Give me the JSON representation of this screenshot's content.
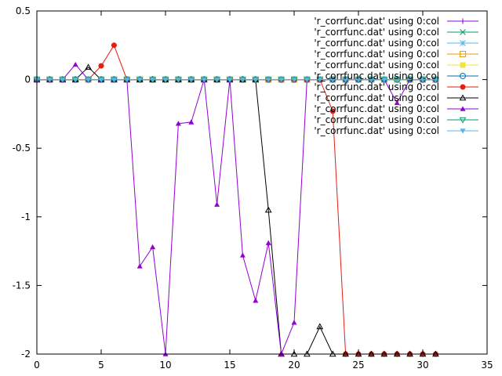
{
  "chart_data": {
    "type": "line",
    "title": "",
    "xlabel": "",
    "ylabel": "",
    "xlim": [
      0,
      35
    ],
    "ylim": [
      -2,
      0.5
    ],
    "xticks": [
      "0",
      "5",
      "10",
      "15",
      "20",
      "25",
      "30",
      "35"
    ],
    "yticks": [
      "0.5",
      "0",
      "-0.5",
      "-1",
      "-1.5",
      "-2"
    ],
    "legend_position": "top-right",
    "grid": false,
    "series": [
      {
        "name": "'r_corrfunc.dat' using 0:col",
        "color": "#9400d3",
        "marker": "plus",
        "x": [
          0,
          1,
          2,
          3,
          4,
          5,
          6,
          7,
          8,
          9,
          10,
          11,
          12,
          13,
          14,
          15,
          16,
          17,
          18,
          19,
          20,
          21,
          22,
          23,
          24,
          25,
          26,
          27,
          28,
          29,
          30,
          31
        ],
        "y": [
          0,
          0,
          0,
          0,
          0,
          0,
          0,
          0,
          0,
          0,
          0,
          0,
          0,
          0,
          0,
          0,
          0,
          0,
          0,
          0,
          0,
          0,
          0,
          0,
          0,
          0,
          0,
          0,
          0,
          0,
          0,
          0
        ]
      },
      {
        "name": "'r_corrfunc.dat' using 0:col",
        "color": "#009e73",
        "marker": "x",
        "x": [
          0,
          1,
          2,
          3,
          4,
          5,
          6,
          7,
          8,
          9,
          10,
          11,
          12,
          13,
          14,
          15,
          16,
          17,
          18,
          19,
          20,
          21,
          22,
          23,
          24,
          25,
          26,
          27,
          28,
          29,
          30,
          31
        ],
        "y": [
          0,
          0,
          0,
          0,
          0,
          0,
          0,
          0,
          0,
          0,
          0,
          0,
          0,
          0,
          0,
          0,
          0,
          0,
          0,
          0,
          0,
          0,
          0,
          0,
          0,
          0,
          0,
          0,
          0,
          0,
          0,
          0
        ]
      },
      {
        "name": "'r_corrfunc.dat' using 0:col",
        "color": "#56b4e9",
        "marker": "star",
        "x": [
          0,
          1,
          2,
          3,
          4,
          5,
          6,
          7,
          8,
          9,
          10,
          11,
          12,
          13,
          14,
          15,
          16,
          17,
          18,
          19,
          20,
          21,
          22,
          23,
          24,
          25,
          26,
          27,
          28,
          29,
          30,
          31
        ],
        "y": [
          0,
          0,
          0,
          0,
          0,
          0,
          0,
          0,
          0,
          0,
          0,
          0,
          0,
          0,
          0,
          0,
          0,
          0,
          0,
          0,
          0,
          0,
          0,
          0,
          0,
          0,
          0,
          0,
          0,
          0,
          0,
          0
        ]
      },
      {
        "name": "'r_corrfunc.dat' using 0:col",
        "color": "#e69f00",
        "marker": "box",
        "x": [
          0,
          1,
          2,
          3,
          4,
          5,
          6,
          7,
          8,
          9,
          10,
          11,
          12,
          13,
          14,
          15,
          16,
          17,
          18,
          19,
          20,
          21,
          22,
          23,
          24,
          25,
          26,
          27,
          28,
          29,
          30,
          31
        ],
        "y": [
          0,
          0,
          0,
          0,
          0,
          0,
          0,
          0,
          0,
          0,
          0,
          0,
          0,
          0,
          0,
          0,
          0,
          0,
          0,
          0,
          0,
          0,
          0,
          0,
          0,
          0,
          0,
          0,
          0,
          0,
          0,
          0
        ]
      },
      {
        "name": "'r_corrfunc.dat' using 0:col",
        "color": "#f0e442",
        "marker": "filledbox",
        "x": [
          0,
          1,
          2,
          3,
          4,
          5,
          6,
          7,
          8,
          9,
          10,
          11,
          12,
          13,
          14,
          15,
          16,
          17,
          18,
          19,
          20,
          21,
          22,
          23,
          24,
          25,
          26,
          27,
          28,
          29,
          30,
          31
        ],
        "y": [
          0,
          0,
          0,
          0,
          0,
          0,
          0,
          0,
          0,
          0,
          0,
          0,
          0,
          0,
          0,
          0,
          0,
          0,
          0,
          0,
          0,
          0,
          0,
          0,
          0,
          0,
          0,
          0,
          0,
          0,
          0,
          0
        ]
      },
      {
        "name": "'r_corrfunc.dat' using 0:col",
        "color": "#0072b2",
        "marker": "circle",
        "x": [
          0,
          1,
          2,
          3,
          4,
          5,
          6,
          7,
          8,
          9,
          10,
          11,
          12,
          13,
          14,
          15,
          16,
          17,
          18,
          19,
          20,
          21,
          22,
          23,
          24,
          25,
          26,
          27,
          28,
          29,
          30,
          31
        ],
        "y": [
          0,
          0,
          0,
          0,
          0,
          0,
          0,
          0,
          0,
          0,
          0,
          0,
          0,
          0,
          0,
          0,
          0,
          0,
          0,
          0,
          0,
          0,
          0,
          0,
          0,
          0,
          0,
          0,
          0,
          0,
          0,
          0
        ]
      },
      {
        "name": "'r_corrfunc.dat' using 0:col",
        "color": "#e51e10",
        "marker": "filledcircle",
        "x": [
          0,
          1,
          2,
          3,
          4,
          5,
          6,
          7,
          8,
          9,
          10,
          11,
          12,
          13,
          14,
          15,
          16,
          17,
          18,
          19,
          20,
          21,
          22,
          23,
          24,
          25,
          26,
          27,
          28,
          29,
          30,
          31
        ],
        "y": [
          0,
          0,
          0,
          0,
          0,
          0.1,
          0.25,
          0,
          0,
          0,
          0,
          0,
          0,
          0,
          0,
          0,
          0,
          0,
          0,
          0,
          0,
          0,
          0,
          -0.23,
          -2,
          -2,
          -2,
          -2,
          -2,
          -2,
          -2,
          -2
        ]
      },
      {
        "name": "'r_corrfunc.dat' using 0:col",
        "color": "#000000",
        "marker": "triangle",
        "x": [
          0,
          1,
          2,
          3,
          4,
          5,
          6,
          7,
          8,
          9,
          10,
          11,
          12,
          13,
          14,
          15,
          16,
          17,
          18,
          19,
          20,
          21,
          22,
          23,
          24,
          25,
          26,
          27,
          28,
          29,
          30,
          31
        ],
        "y": [
          0,
          0,
          0,
          0,
          0.09,
          0,
          0,
          0,
          0,
          0,
          0,
          0,
          0,
          0,
          0,
          0,
          0,
          0,
          -0.95,
          -2,
          -2,
          -2,
          -1.8,
          -2,
          -2,
          -2,
          -2,
          -2,
          -2,
          -2,
          -2,
          -2
        ]
      },
      {
        "name": "'r_corrfunc.dat' using 0:col",
        "color": "#9400d3",
        "marker": "filledtriangle",
        "x": [
          0,
          1,
          2,
          3,
          4,
          5,
          6,
          7,
          8,
          9,
          10,
          11,
          12,
          13,
          14,
          15,
          16,
          17,
          18,
          19,
          20,
          21,
          22,
          23,
          24,
          25,
          26,
          27,
          28,
          29,
          30,
          31
        ],
        "y": [
          0,
          0,
          0,
          0.11,
          0,
          0,
          0,
          0,
          -1.36,
          -1.22,
          -2,
          -0.32,
          -0.31,
          0,
          -0.91,
          0,
          -1.28,
          -1.61,
          -1.19,
          -2,
          -1.77,
          0,
          0,
          0,
          0,
          0,
          0,
          0,
          -0.17,
          0,
          0,
          0
        ]
      },
      {
        "name": "'r_corrfunc.dat' using 0:col",
        "color": "#009e73",
        "marker": "invtriangle",
        "x": [
          0,
          1,
          2,
          3,
          4,
          5,
          6,
          7,
          8,
          9,
          10,
          11,
          12,
          13,
          14,
          15,
          16,
          17,
          18,
          19,
          20,
          21,
          22,
          23,
          24,
          25,
          26,
          27,
          28,
          29,
          30,
          31
        ],
        "y": [
          0,
          0,
          0,
          0,
          0,
          0,
          0,
          0,
          0,
          0,
          0,
          0,
          0,
          0,
          0,
          0,
          0,
          0,
          0,
          0,
          0,
          0,
          0,
          0,
          0,
          0,
          0,
          0,
          0,
          0,
          0,
          0
        ]
      },
      {
        "name": "'r_corrfunc.dat' using 0:col",
        "color": "#56b4e9",
        "marker": "filledinvtriangle",
        "x": [
          0,
          1,
          2,
          3,
          4,
          5,
          6,
          7,
          8,
          9,
          10,
          11,
          12,
          13,
          14,
          15,
          16,
          17,
          18,
          19,
          20,
          21,
          22,
          23,
          24,
          25,
          26,
          27,
          28,
          29,
          30,
          31
        ],
        "y": [
          0,
          0,
          0,
          0,
          0,
          0,
          0,
          0,
          0,
          0,
          0,
          0,
          0,
          0,
          0,
          0,
          0,
          0,
          0,
          0,
          0,
          0,
          0,
          0,
          0,
          0,
          0,
          0,
          0,
          0,
          0,
          0
        ]
      }
    ]
  }
}
